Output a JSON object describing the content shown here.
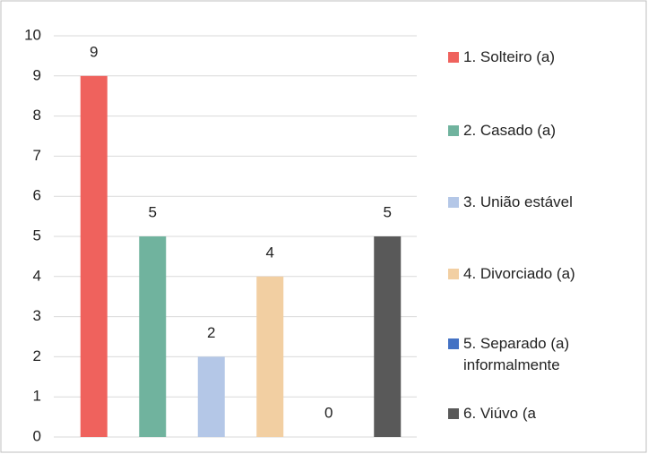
{
  "chart_data": {
    "type": "bar",
    "categories": [
      "1. Solteiro (a)",
      "2. Casado (a)",
      "3. União estável",
      "4. Divorciado (a)",
      "5. Separado (a) informalmente",
      "6. Viúvo (a"
    ],
    "values": [
      9,
      5,
      2,
      4,
      0,
      5
    ],
    "colors": [
      "#ef625d",
      "#70b39e",
      "#b4c7e7",
      "#f2cfa2",
      "#4472c4",
      "#595959"
    ],
    "ylim": [
      0,
      10
    ],
    "yticks": [
      0,
      1,
      2,
      3,
      4,
      5,
      6,
      7,
      8,
      9,
      10
    ],
    "grid": true,
    "legend": "right"
  }
}
